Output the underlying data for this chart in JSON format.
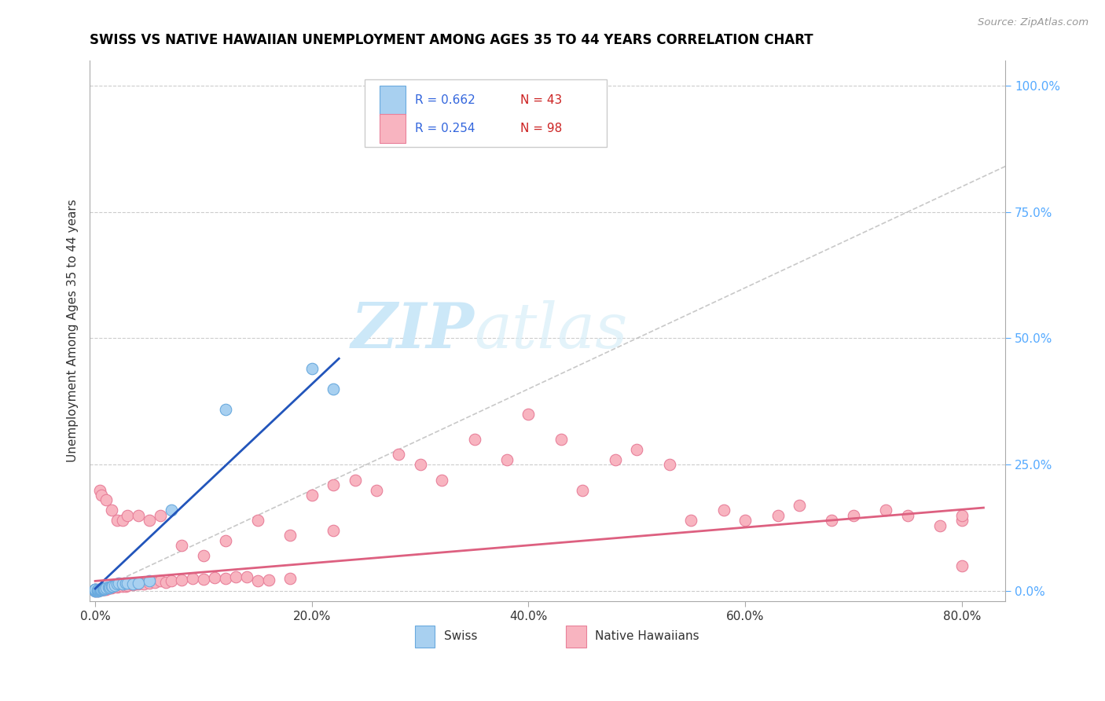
{
  "title": "SWISS VS NATIVE HAWAIIAN UNEMPLOYMENT AMONG AGES 35 TO 44 YEARS CORRELATION CHART",
  "source": "Source: ZipAtlas.com",
  "xlabel_ticks": [
    "0.0%",
    "20.0%",
    "40.0%",
    "60.0%",
    "80.0%"
  ],
  "xlabel_tick_vals": [
    0.0,
    0.2,
    0.4,
    0.6,
    0.8
  ],
  "ylabel_ticks": [
    "100.0%",
    "75.0%",
    "50.0%",
    "25.0%",
    "0.0%"
  ],
  "ylabel_tick_vals": [
    1.0,
    0.75,
    0.5,
    0.25,
    0.0
  ],
  "ylabel": "Unemployment Among Ages 35 to 44 years",
  "xlim": [
    -0.005,
    0.84
  ],
  "ylim": [
    -0.02,
    1.05
  ],
  "swiss_color": "#a8d0f0",
  "swiss_edge_color": "#6aaade",
  "native_color": "#f8b4c0",
  "native_edge_color": "#e8809a",
  "swiss_R": "0.662",
  "swiss_N": "43",
  "native_R": "0.254",
  "native_N": "98",
  "swiss_line_color": "#2255bb",
  "native_line_color": "#dd6080",
  "ref_line_color": "#bbbbbb",
  "legend_R_color": "#3366dd",
  "legend_N_color": "#cc2222",
  "ytick_color": "#55aaff",
  "watermark_color": "#cce8f8",
  "swiss_x": [
    0.0,
    0.0,
    0.0,
    0.0,
    0.0,
    0.0,
    0.0,
    0.002,
    0.002,
    0.003,
    0.003,
    0.003,
    0.004,
    0.004,
    0.005,
    0.005,
    0.006,
    0.006,
    0.007,
    0.007,
    0.008,
    0.008,
    0.009,
    0.01,
    0.01,
    0.012,
    0.013,
    0.014,
    0.015,
    0.016,
    0.018,
    0.02,
    0.022,
    0.025,
    0.028,
    0.03,
    0.035,
    0.04,
    0.05,
    0.07,
    0.12,
    0.2,
    0.22
  ],
  "swiss_y": [
    0.0,
    0.0,
    0.002,
    0.002,
    0.003,
    0.003,
    0.004,
    0.0,
    0.002,
    0.0,
    0.002,
    0.003,
    0.002,
    0.003,
    0.003,
    0.004,
    0.003,
    0.004,
    0.003,
    0.005,
    0.004,
    0.005,
    0.005,
    0.006,
    0.007,
    0.008,
    0.007,
    0.008,
    0.009,
    0.01,
    0.012,
    0.015,
    0.016,
    0.015,
    0.016,
    0.016,
    0.015,
    0.016,
    0.02,
    0.16,
    0.36,
    0.44,
    0.4
  ],
  "native_x": [
    0.0,
    0.0,
    0.0,
    0.0,
    0.002,
    0.002,
    0.003,
    0.003,
    0.004,
    0.005,
    0.005,
    0.006,
    0.006,
    0.007,
    0.007,
    0.008,
    0.008,
    0.009,
    0.01,
    0.01,
    0.01,
    0.012,
    0.013,
    0.014,
    0.015,
    0.015,
    0.016,
    0.018,
    0.02,
    0.022,
    0.025,
    0.028,
    0.03,
    0.033,
    0.035,
    0.038,
    0.04,
    0.042,
    0.045,
    0.05,
    0.055,
    0.06,
    0.065,
    0.07,
    0.08,
    0.09,
    0.1,
    0.11,
    0.12,
    0.13,
    0.14,
    0.15,
    0.16,
    0.18,
    0.2,
    0.22,
    0.24,
    0.26,
    0.28,
    0.3,
    0.32,
    0.35,
    0.38,
    0.4,
    0.43,
    0.45,
    0.48,
    0.5,
    0.53,
    0.55,
    0.58,
    0.6,
    0.63,
    0.65,
    0.68,
    0.7,
    0.73,
    0.75,
    0.78,
    0.8,
    0.8,
    0.8,
    0.004,
    0.006,
    0.01,
    0.015,
    0.02,
    0.025,
    0.03,
    0.04,
    0.05,
    0.06,
    0.08,
    0.1,
    0.12,
    0.15,
    0.18,
    0.22
  ],
  "native_y": [
    0.0,
    0.002,
    0.003,
    0.004,
    0.0,
    0.002,
    0.002,
    0.003,
    0.003,
    0.002,
    0.003,
    0.003,
    0.004,
    0.003,
    0.004,
    0.003,
    0.005,
    0.004,
    0.003,
    0.005,
    0.007,
    0.006,
    0.007,
    0.007,
    0.006,
    0.008,
    0.008,
    0.009,
    0.008,
    0.01,
    0.009,
    0.01,
    0.012,
    0.014,
    0.013,
    0.015,
    0.014,
    0.016,
    0.015,
    0.016,
    0.018,
    0.02,
    0.018,
    0.02,
    0.022,
    0.025,
    0.024,
    0.026,
    0.025,
    0.028,
    0.028,
    0.02,
    0.022,
    0.025,
    0.19,
    0.21,
    0.22,
    0.2,
    0.27,
    0.25,
    0.22,
    0.3,
    0.26,
    0.35,
    0.3,
    0.2,
    0.26,
    0.28,
    0.25,
    0.14,
    0.16,
    0.14,
    0.15,
    0.17,
    0.14,
    0.15,
    0.16,
    0.15,
    0.13,
    0.14,
    0.15,
    0.05,
    0.2,
    0.19,
    0.18,
    0.16,
    0.14,
    0.14,
    0.15,
    0.15,
    0.14,
    0.15,
    0.09,
    0.07,
    0.1,
    0.14,
    0.11,
    0.12
  ]
}
